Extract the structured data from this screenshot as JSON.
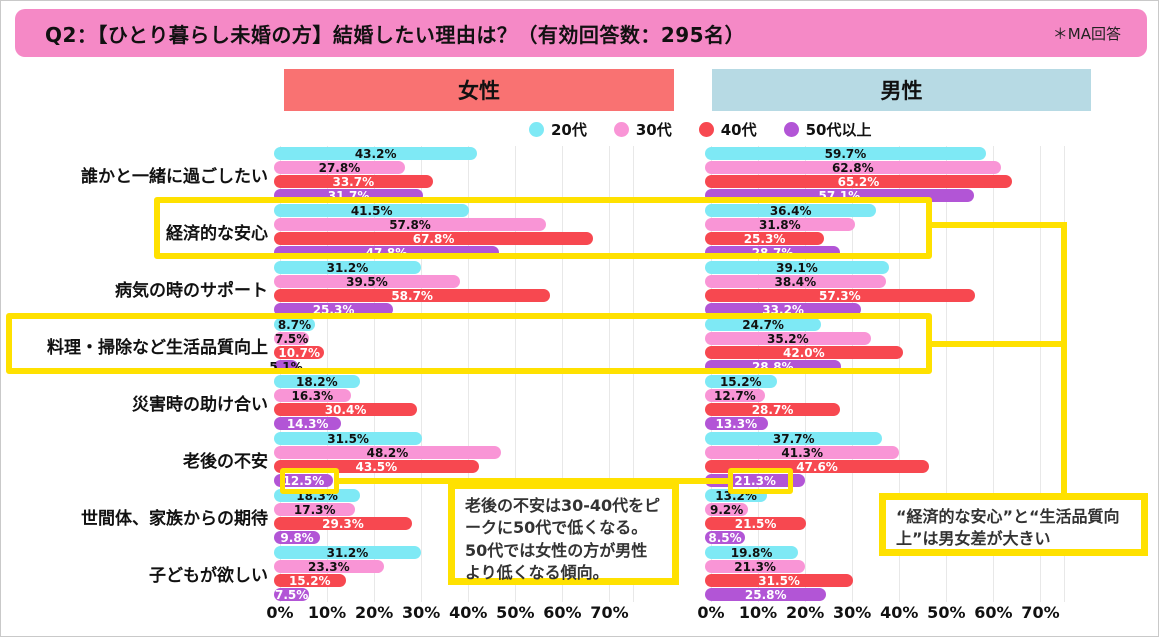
{
  "title": {
    "text": "Q2：【ひとり暮らし未婚の方】結婚したい理由は？（有効回答数：295名）",
    "note": "＊MA回答"
  },
  "panels": {
    "female": "女性",
    "male": "男性"
  },
  "legend": [
    {
      "label": "20代",
      "color": "#7EE9F5"
    },
    {
      "label": "30代",
      "color": "#F995D6"
    },
    {
      "label": "40代",
      "color": "#F74850"
    },
    {
      "label": "50代以上",
      "color": "#B255D6"
    }
  ],
  "annotations": {
    "aging": "老後の不安は30-40代をピークに50代で低くなる。50代では女性の方が男性より低くなる傾向。",
    "gender_gap": "“経済的な安心”と“生活品質向上”は男女差が大きい"
  },
  "colors": {
    "title_bg": "#F589C6",
    "female_header_bg": "#F97272",
    "male_header_bg": "#B7DAE4",
    "highlight_yellow": "#FFE100",
    "gridline": "#E8E8E8",
    "series": [
      "#7EE9F5",
      "#F995D6",
      "#F74850",
      "#B255D6"
    ]
  },
  "chart_data": {
    "type": "bar",
    "orientation": "horizontal",
    "unit": "%",
    "xlim": [
      0,
      75
    ],
    "grid": true,
    "x_ticks": [
      "0%",
      "10%",
      "20%",
      "30%",
      "40%",
      "50%",
      "60%",
      "70%"
    ],
    "tick_step": 10,
    "series_names": [
      "20代",
      "30代",
      "40代",
      "50代以上"
    ],
    "categories": [
      "誰かと一緒に過ごしたい",
      "経済的な安心",
      "病気の時のサポート",
      "料理・掃除など生活品質向上",
      "災害時の助け合い",
      "老後の不安",
      "世間体、家族からの期待",
      "子どもが欲しい"
    ],
    "female": {
      "label": "女性",
      "values": [
        [
          43.2,
          27.8,
          33.7,
          31.7
        ],
        [
          41.5,
          57.8,
          67.8,
          47.8
        ],
        [
          31.2,
          39.5,
          58.7,
          25.3
        ],
        [
          8.7,
          7.5,
          10.7,
          5.1
        ],
        [
          18.2,
          16.3,
          30.4,
          14.3
        ],
        [
          31.5,
          48.2,
          43.5,
          12.5
        ],
        [
          18.3,
          17.3,
          29.3,
          9.8
        ],
        [
          31.2,
          23.3,
          15.2,
          7.5
        ]
      ]
    },
    "male": {
      "label": "男性",
      "values": [
        [
          59.7,
          62.8,
          65.2,
          57.1
        ],
        [
          36.4,
          31.8,
          25.3,
          28.7
        ],
        [
          39.1,
          38.4,
          57.3,
          33.2
        ],
        [
          24.7,
          35.2,
          42.0,
          28.8
        ],
        [
          15.2,
          12.7,
          28.7,
          13.3
        ],
        [
          37.7,
          41.3,
          47.6,
          21.3
        ],
        [
          13.2,
          9.2,
          21.5,
          8.5
        ],
        [
          19.8,
          21.3,
          31.5,
          25.8
        ]
      ]
    }
  }
}
